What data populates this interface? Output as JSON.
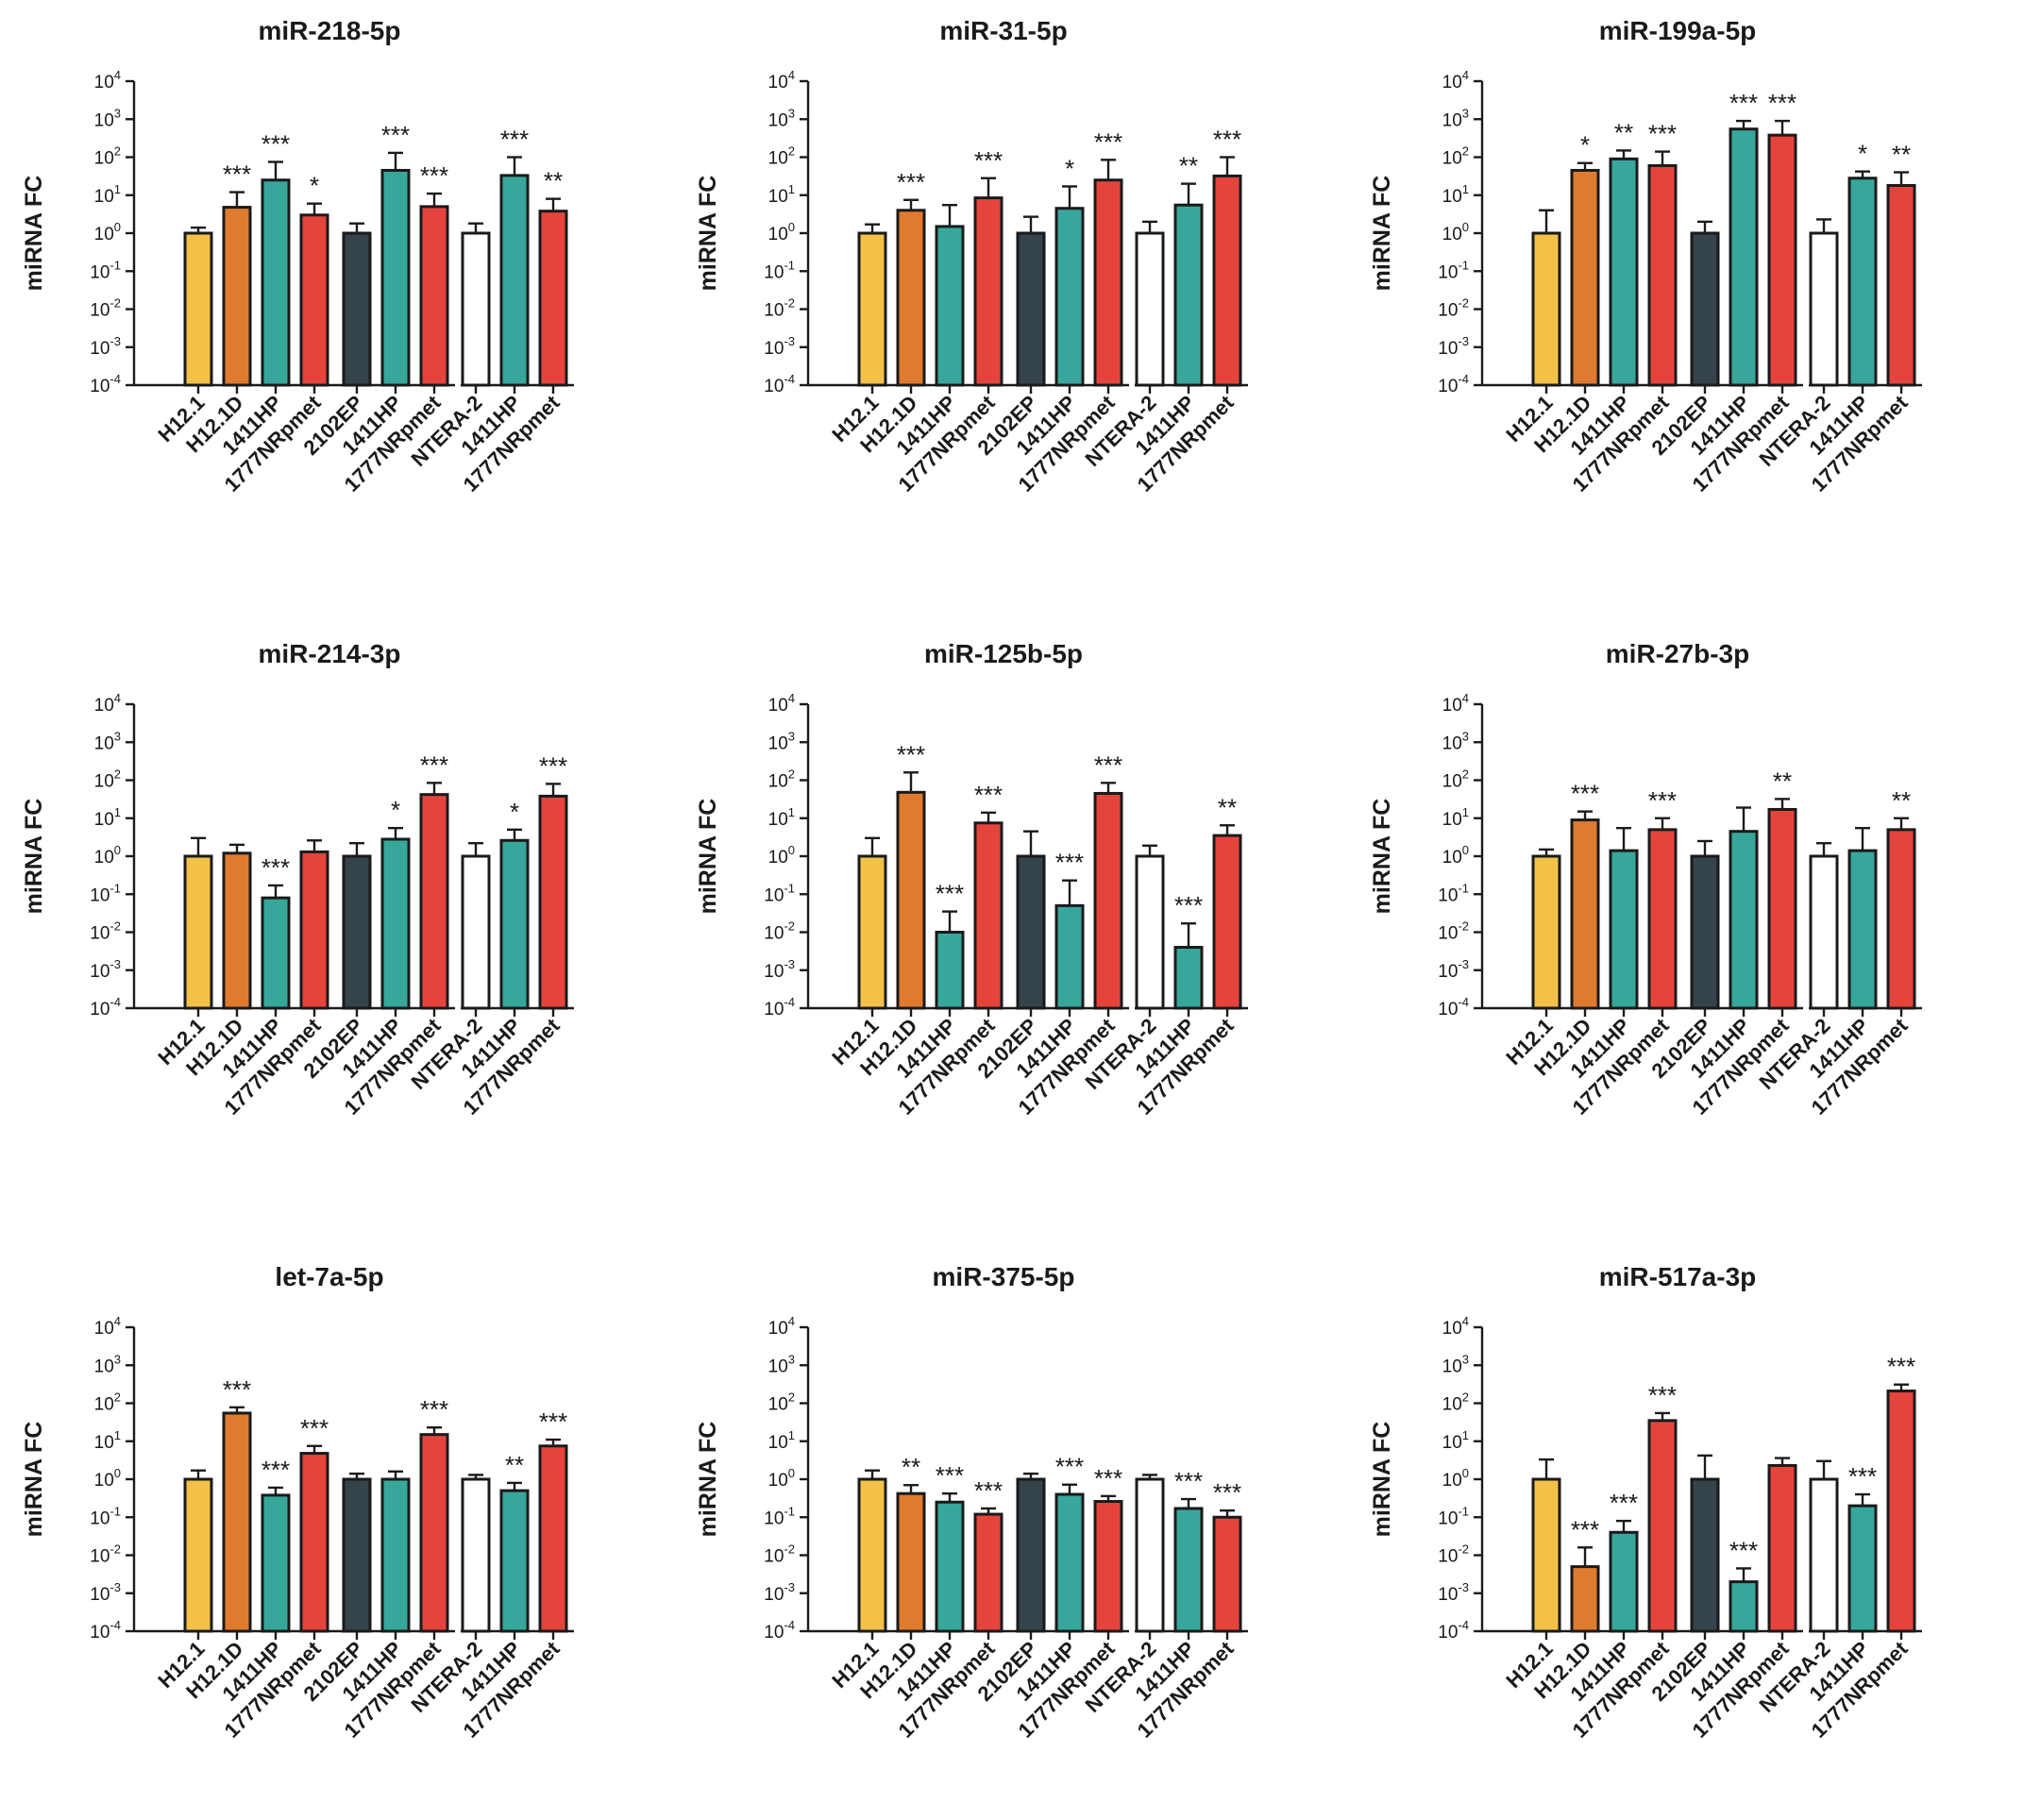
{
  "colors": {
    "H12.1": "#f3c148",
    "H12.1D": "#e07a2e",
    "1411HP": "#37a79c",
    "1777NRpmet": "#e5443d",
    "2102EP": "#35434a",
    "NTERA-2": "#ffffff"
  },
  "axis_ticks": [
    "10^4",
    "10^3",
    "10^2",
    "10^1",
    "10^0",
    "10^-1",
    "10^-2",
    "10^-3",
    "10^-4"
  ],
  "chart_data": [
    {
      "type": "bar",
      "title": "miR-218-5p",
      "ylabel": "miRNA FC",
      "yscale": "log",
      "ylim": [
        0.0001,
        10000
      ],
      "groups": [
        {
          "categories": [
            "H12.1",
            "H12.1D",
            "1411HP",
            "1777NRpmet"
          ],
          "values": [
            1,
            4.8,
            25,
            3
          ],
          "err_upper": [
            1.4,
            12,
            75,
            6
          ],
          "sig": [
            "",
            "***",
            "***",
            "*"
          ]
        },
        {
          "categories": [
            "2102EP",
            "1411HP",
            "1777NRpmet"
          ],
          "values": [
            1,
            45,
            5
          ],
          "err_upper": [
            1.8,
            130,
            11
          ],
          "sig": [
            "",
            "***",
            "***"
          ]
        },
        {
          "categories": [
            "NTERA-2",
            "1411HP",
            "1777NRpmet"
          ],
          "values": [
            1,
            33,
            3.8
          ],
          "err_upper": [
            1.8,
            100,
            8
          ],
          "sig": [
            "",
            "***",
            "**"
          ]
        }
      ]
    },
    {
      "type": "bar",
      "title": "miR-31-5p",
      "ylabel": "miRNA FC",
      "yscale": "log",
      "ylim": [
        0.0001,
        10000
      ],
      "groups": [
        {
          "categories": [
            "H12.1",
            "H12.1D",
            "1411HP",
            "1777NRpmet"
          ],
          "values": [
            1,
            4,
            1.5,
            8.5
          ],
          "err_upper": [
            1.7,
            7.5,
            5.5,
            28
          ],
          "sig": [
            "",
            "***",
            "",
            "***"
          ]
        },
        {
          "categories": [
            "2102EP",
            "1411HP",
            "1777NRpmet"
          ],
          "values": [
            1,
            4.5,
            25
          ],
          "err_upper": [
            2.7,
            17,
            85
          ],
          "sig": [
            "",
            "*",
            "***"
          ]
        },
        {
          "categories": [
            "NTERA-2",
            "1411HP",
            "1777NRpmet"
          ],
          "values": [
            1,
            5.5,
            32
          ],
          "err_upper": [
            2,
            20,
            100
          ],
          "sig": [
            "",
            "**",
            "***"
          ]
        }
      ]
    },
    {
      "type": "bar",
      "title": "miR-199a-5p",
      "ylabel": "miRNA FC",
      "yscale": "log",
      "ylim": [
        0.0001,
        10000
      ],
      "groups": [
        {
          "categories": [
            "H12.1",
            "H12.1D",
            "1411HP",
            "1777NRpmet"
          ],
          "values": [
            1,
            45,
            90,
            60
          ],
          "err_upper": [
            4,
            70,
            150,
            140
          ],
          "sig": [
            "",
            "*",
            "**",
            "***"
          ]
        },
        {
          "categories": [
            "2102EP",
            "1411HP",
            "1777NRpmet"
          ],
          "values": [
            1,
            550,
            380
          ],
          "err_upper": [
            2,
            900,
            900
          ],
          "sig": [
            "",
            "***",
            "***"
          ]
        },
        {
          "categories": [
            "NTERA-2",
            "1411HP",
            "1777NRpmet"
          ],
          "values": [
            1,
            28,
            18
          ],
          "err_upper": [
            2.3,
            42,
            40
          ],
          "sig": [
            "",
            "*",
            "**"
          ]
        }
      ]
    },
    {
      "type": "bar",
      "title": "miR-214-3p",
      "ylabel": "miRNA FC",
      "yscale": "log",
      "ylim": [
        0.0001,
        10000
      ],
      "groups": [
        {
          "categories": [
            "H12.1",
            "H12.1D",
            "1411HP",
            "1777NRpmet"
          ],
          "values": [
            1,
            1.2,
            0.08,
            1.3
          ],
          "err_upper": [
            3,
            2,
            0.17,
            2.6
          ],
          "sig": [
            "",
            "",
            "***",
            ""
          ]
        },
        {
          "categories": [
            "2102EP",
            "1411HP",
            "1777NRpmet"
          ],
          "values": [
            1,
            2.8,
            42
          ],
          "err_upper": [
            2.2,
            5.5,
            85
          ],
          "sig": [
            "",
            "*",
            "***"
          ]
        },
        {
          "categories": [
            "NTERA-2",
            "1411HP",
            "1777NRpmet"
          ],
          "values": [
            1,
            2.6,
            38
          ],
          "err_upper": [
            2.2,
            5,
            80
          ],
          "sig": [
            "",
            "*",
            "***"
          ]
        }
      ]
    },
    {
      "type": "bar",
      "title": "miR-125b-5p",
      "ylabel": "miRNA FC",
      "yscale": "log",
      "ylim": [
        0.0001,
        10000
      ],
      "groups": [
        {
          "categories": [
            "H12.1",
            "H12.1D",
            "1411HP",
            "1777NRpmet"
          ],
          "values": [
            1,
            48,
            0.01,
            7.5
          ],
          "err_upper": [
            3,
            160,
            0.035,
            14
          ],
          "sig": [
            "",
            "***",
            "***",
            "***"
          ]
        },
        {
          "categories": [
            "2102EP",
            "1411HP",
            "1777NRpmet"
          ],
          "values": [
            1,
            0.05,
            45
          ],
          "err_upper": [
            4.5,
            0.23,
            85
          ],
          "sig": [
            "",
            "***",
            "***"
          ]
        },
        {
          "categories": [
            "NTERA-2",
            "1411HP",
            "1777NRpmet"
          ],
          "values": [
            1,
            0.004,
            3.5
          ],
          "err_upper": [
            1.9,
            0.017,
            6.5
          ],
          "sig": [
            "",
            "***",
            "**"
          ]
        }
      ]
    },
    {
      "type": "bar",
      "title": "miR-27b-3p",
      "ylabel": "miRNA FC",
      "yscale": "log",
      "ylim": [
        0.0001,
        10000
      ],
      "groups": [
        {
          "categories": [
            "H12.1",
            "H12.1D",
            "1411HP",
            "1777NRpmet"
          ],
          "values": [
            1,
            9,
            1.4,
            5
          ],
          "err_upper": [
            1.5,
            15,
            5.5,
            10
          ],
          "sig": [
            "",
            "***",
            "",
            "***"
          ]
        },
        {
          "categories": [
            "2102EP",
            "1411HP",
            "1777NRpmet"
          ],
          "values": [
            1,
            4.5,
            17
          ],
          "err_upper": [
            2.5,
            19,
            32
          ],
          "sig": [
            "",
            "",
            "**"
          ]
        },
        {
          "categories": [
            "NTERA-2",
            "1411HP",
            "1777NRpmet"
          ],
          "values": [
            1,
            1.4,
            5
          ],
          "err_upper": [
            2.2,
            5.5,
            10
          ],
          "sig": [
            "",
            "",
            "**"
          ]
        }
      ]
    },
    {
      "type": "bar",
      "title": "let-7a-5p",
      "ylabel": "miRNA FC",
      "yscale": "log",
      "ylim": [
        0.0001,
        10000
      ],
      "groups": [
        {
          "categories": [
            "H12.1",
            "H12.1D",
            "1411HP",
            "1777NRpmet"
          ],
          "values": [
            1,
            55,
            0.38,
            4.8
          ],
          "err_upper": [
            1.7,
            78,
            0.6,
            7.5
          ],
          "sig": [
            "",
            "***",
            "***",
            "***"
          ]
        },
        {
          "categories": [
            "2102EP",
            "1411HP",
            "1777NRpmet"
          ],
          "values": [
            1,
            1,
            15
          ],
          "err_upper": [
            1.4,
            1.6,
            23
          ],
          "sig": [
            "",
            "",
            "***"
          ]
        },
        {
          "categories": [
            "NTERA-2",
            "1411HP",
            "1777NRpmet"
          ],
          "values": [
            1,
            0.5,
            7.5
          ],
          "err_upper": [
            1.3,
            0.8,
            11
          ],
          "sig": [
            "",
            "**",
            "***"
          ]
        }
      ]
    },
    {
      "type": "bar",
      "title": "miR-375-5p",
      "ylabel": "miRNA FC",
      "yscale": "log",
      "ylim": [
        0.0001,
        10000
      ],
      "groups": [
        {
          "categories": [
            "H12.1",
            "H12.1D",
            "1411HP",
            "1777NRpmet"
          ],
          "values": [
            1,
            0.42,
            0.25,
            0.12
          ],
          "err_upper": [
            1.7,
            0.7,
            0.42,
            0.17
          ],
          "sig": [
            "",
            "**",
            "***",
            "***"
          ]
        },
        {
          "categories": [
            "2102EP",
            "1411HP",
            "1777NRpmet"
          ],
          "values": [
            1,
            0.4,
            0.26
          ],
          "err_upper": [
            1.4,
            0.72,
            0.36
          ],
          "sig": [
            "",
            "***",
            "***"
          ]
        },
        {
          "categories": [
            "NTERA-2",
            "1411HP",
            "1777NRpmet"
          ],
          "values": [
            1,
            0.17,
            0.1
          ],
          "err_upper": [
            1.3,
            0.3,
            0.15
          ],
          "sig": [
            "",
            "***",
            "***"
          ]
        }
      ]
    },
    {
      "type": "bar",
      "title": "miR-517a-3p",
      "ylabel": "miRNA FC",
      "yscale": "log",
      "ylim": [
        0.0001,
        10000
      ],
      "groups": [
        {
          "categories": [
            "H12.1",
            "H12.1D",
            "1411HP",
            "1777NRpmet"
          ],
          "values": [
            1,
            0.005,
            0.04,
            35
          ],
          "err_upper": [
            3.3,
            0.016,
            0.08,
            55
          ],
          "sig": [
            "",
            "***",
            "***",
            "***"
          ]
        },
        {
          "categories": [
            "2102EP",
            "1411HP",
            "1777NRpmet"
          ],
          "values": [
            1,
            0.002,
            2.3
          ],
          "err_upper": [
            4.2,
            0.0045,
            3.6
          ],
          "sig": [
            "",
            "***",
            ""
          ]
        },
        {
          "categories": [
            "NTERA-2",
            "1411HP",
            "1777NRpmet"
          ],
          "values": [
            1,
            0.2,
            210
          ],
          "err_upper": [
            3,
            0.4,
            310
          ],
          "sig": [
            "",
            "***",
            "***"
          ]
        }
      ]
    }
  ]
}
